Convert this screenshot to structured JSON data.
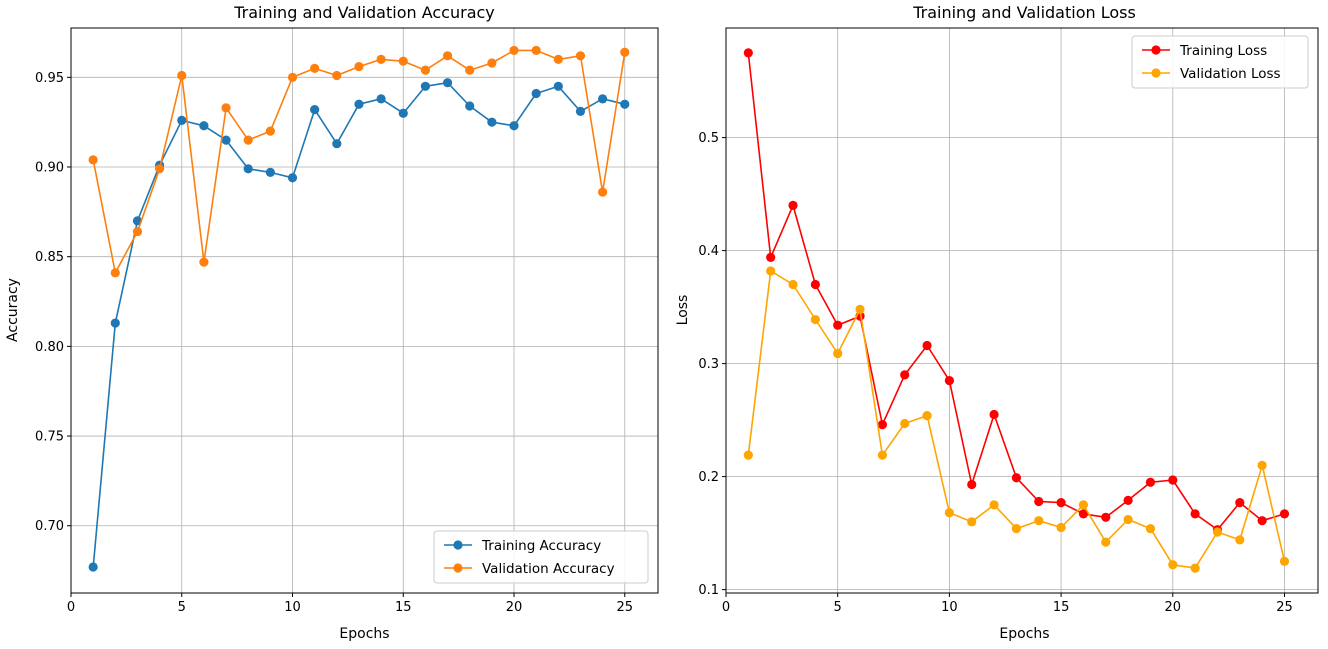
{
  "chart_data": [
    {
      "type": "line",
      "title": "Training and Validation Accuracy",
      "xlabel": "Epochs",
      "ylabel": "Accuracy",
      "xlim": [
        0,
        26.5
      ],
      "ylim": [
        0.6625,
        0.9775
      ],
      "xticks": [
        0,
        5,
        10,
        15,
        20,
        25
      ],
      "yticks": [
        0.7,
        0.75,
        0.8,
        0.85,
        0.9,
        0.95
      ],
      "ytick_labels": [
        "0.70",
        "0.75",
        "0.80",
        "0.85",
        "0.90",
        "0.95"
      ],
      "grid": true,
      "legend_position": "lower-right",
      "x": [
        1,
        2,
        3,
        4,
        5,
        6,
        7,
        8,
        9,
        10,
        11,
        12,
        13,
        14,
        15,
        16,
        17,
        18,
        19,
        20,
        21,
        22,
        23,
        24,
        25
      ],
      "series": [
        {
          "name": "Training Accuracy",
          "color": "#1f77b4",
          "values": [
            0.677,
            0.813,
            0.87,
            0.901,
            0.926,
            0.923,
            0.915,
            0.899,
            0.897,
            0.894,
            0.932,
            0.913,
            0.935,
            0.938,
            0.93,
            0.945,
            0.947,
            0.934,
            0.925,
            0.923,
            0.941,
            0.945,
            0.931,
            0.938,
            0.935
          ]
        },
        {
          "name": "Validation Accuracy",
          "color": "#ff7f0e",
          "values": [
            0.904,
            0.841,
            0.864,
            0.899,
            0.951,
            0.847,
            0.933,
            0.915,
            0.92,
            0.95,
            0.955,
            0.951,
            0.956,
            0.96,
            0.959,
            0.954,
            0.962,
            0.954,
            0.958,
            0.965,
            0.965,
            0.96,
            0.962,
            0.886,
            0.964
          ]
        }
      ]
    },
    {
      "type": "line",
      "title": "Training and Validation Loss",
      "xlabel": "Epochs",
      "ylabel": "Loss",
      "xlim": [
        0,
        26.5
      ],
      "ylim": [
        0.097,
        0.597
      ],
      "xticks": [
        0,
        5,
        10,
        15,
        20,
        25
      ],
      "yticks": [
        0.1,
        0.2,
        0.3,
        0.4,
        0.5
      ],
      "ytick_labels": [
        "0.1",
        "0.2",
        "0.3",
        "0.4",
        "0.5"
      ],
      "grid": true,
      "legend_position": "upper-right",
      "x": [
        1,
        2,
        3,
        4,
        5,
        6,
        7,
        8,
        9,
        10,
        11,
        12,
        13,
        14,
        15,
        16,
        17,
        18,
        19,
        20,
        21,
        22,
        23,
        24,
        25
      ],
      "series": [
        {
          "name": "Training Loss",
          "color": "#ff0000",
          "values": [
            0.575,
            0.394,
            0.44,
            0.37,
            0.334,
            0.342,
            0.246,
            0.29,
            0.316,
            0.285,
            0.193,
            0.255,
            0.199,
            0.178,
            0.177,
            0.167,
            0.164,
            0.179,
            0.195,
            0.197,
            0.167,
            0.153,
            0.177,
            0.161,
            0.167
          ]
        },
        {
          "name": "Validation Loss",
          "color": "#ffa500",
          "values": [
            0.219,
            0.382,
            0.37,
            0.339,
            0.309,
            0.348,
            0.219,
            0.247,
            0.254,
            0.168,
            0.16,
            0.175,
            0.154,
            0.161,
            0.155,
            0.175,
            0.142,
            0.162,
            0.154,
            0.122,
            0.119,
            0.151,
            0.144,
            0.21,
            0.125
          ]
        }
      ]
    }
  ]
}
